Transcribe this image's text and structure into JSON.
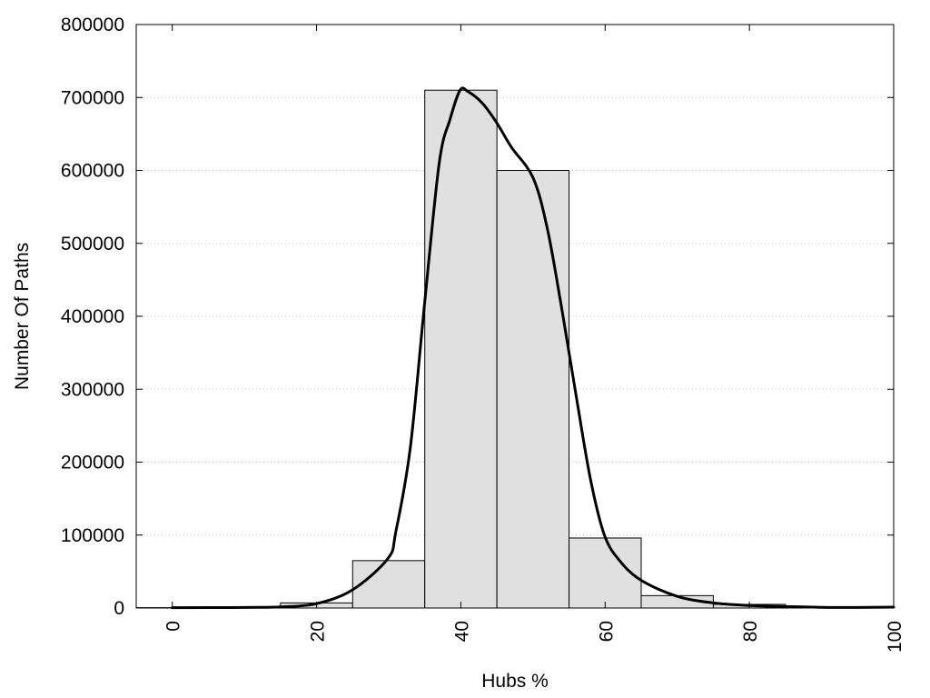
{
  "chart_data": {
    "type": "bar",
    "xlabel": "Hubs %",
    "ylabel": "Number Of Paths",
    "xlim": [
      -5,
      100
    ],
    "ylim": [
      0,
      800000
    ],
    "x_ticks": [
      0,
      20,
      40,
      60,
      80,
      100
    ],
    "x_tick_labels": [
      "0",
      "20",
      "40",
      "60",
      "80",
      "100"
    ],
    "y_ticks": [
      0,
      100000,
      200000,
      300000,
      400000,
      500000,
      600000,
      700000,
      800000
    ],
    "y_tick_labels": [
      "0",
      "100000",
      "200000",
      "300000",
      "400000",
      "500000",
      "600000",
      "700000",
      "800000"
    ],
    "grid": "horizontal dotted",
    "bins": [
      {
        "x_start": -5,
        "x_end": 5,
        "value": 500
      },
      {
        "x_start": 5,
        "x_end": 15,
        "value": 1000
      },
      {
        "x_start": 15,
        "x_end": 25,
        "value": 7000
      },
      {
        "x_start": 25,
        "x_end": 35,
        "value": 65000
      },
      {
        "x_start": 35,
        "x_end": 45,
        "value": 710000
      },
      {
        "x_start": 45,
        "x_end": 55,
        "value": 600000
      },
      {
        "x_start": 55,
        "x_end": 65,
        "value": 96000
      },
      {
        "x_start": 65,
        "x_end": 75,
        "value": 17000
      },
      {
        "x_start": 75,
        "x_end": 85,
        "value": 5000
      },
      {
        "x_start": 85,
        "x_end": 95,
        "value": 500
      },
      {
        "x_start": 95,
        "x_end": 100,
        "value": 300
      }
    ],
    "curve": {
      "x": [
        0,
        10,
        15,
        20,
        25,
        29.9,
        31,
        33,
        35,
        37,
        38.5,
        39.9,
        41,
        43,
        45,
        47,
        50,
        52,
        54,
        56,
        58,
        59.9,
        62,
        65,
        70,
        75,
        80,
        85,
        90,
        95,
        100
      ],
      "y": [
        500,
        800,
        1500,
        6000,
        25000,
        68000,
        105000,
        220000,
        420000,
        610000,
        670000,
        710000,
        708000,
        692000,
        665000,
        632000,
        590000,
        520000,
        410000,
        290000,
        175000,
        100000,
        65000,
        38000,
        16000,
        7000,
        3500,
        2000,
        1000,
        800,
        1200
      ]
    },
    "colors": {
      "bar_fill": "#e0e0e0",
      "bar_stroke": "#000000",
      "curve": "#000000",
      "grid": "#bfbfbf"
    }
  }
}
